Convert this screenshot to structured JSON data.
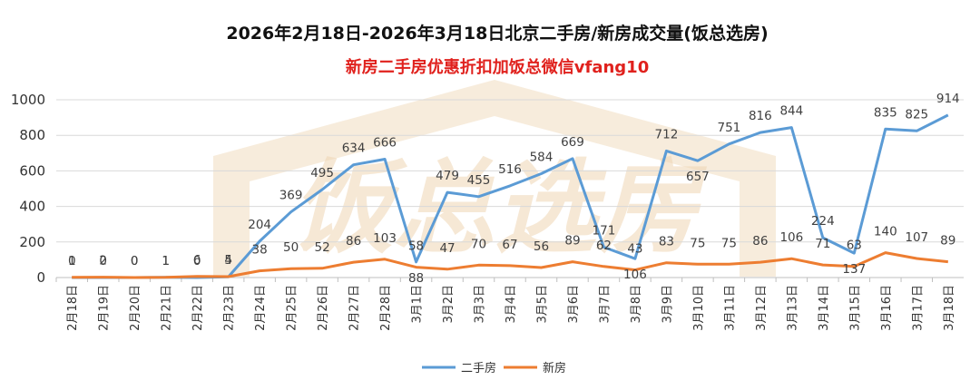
{
  "colors": {
    "second_hand": "#5b9bd5",
    "new_home": "#ed7d31",
    "subtitle": "#e0211d",
    "watermark": "#f1dcc0"
  },
  "watermark": "饭总选房",
  "chart_data": {
    "type": "line",
    "title": "2026年2月18日-2026年3月18日北京二手房/新房成交量(饭总选房)",
    "subtitle": "新房二手房优惠折扣加饭总微信vfang10",
    "categories": [
      "2月18日",
      "2月19日",
      "2月20日",
      "2月21日",
      "2月22日",
      "2月23日",
      "2月24日",
      "2月25日",
      "2月26日",
      "2月27日",
      "2月28日",
      "3月1日",
      "3月2日",
      "3月3日",
      "3月4日",
      "3月5日",
      "3月6日",
      "3月7日",
      "3月8日",
      "3月9日",
      "3月10日",
      "3月11日",
      "3月12日",
      "3月13日",
      "3月14日",
      "3月15日",
      "3月16日",
      "3月17日",
      "3月18日"
    ],
    "series": [
      {
        "name": "二手房",
        "values": [
          0,
          0,
          0,
          1,
          0,
          4,
          204,
          369,
          495,
          634,
          666,
          88,
          479,
          455,
          516,
          584,
          669,
          171,
          106,
          712,
          657,
          751,
          816,
          844,
          224,
          137,
          835,
          825,
          914
        ]
      },
      {
        "name": "新房",
        "values": [
          1,
          2,
          0,
          1,
          6,
          5,
          38,
          50,
          52,
          86,
          103,
          58,
          47,
          70,
          67,
          56,
          89,
          62,
          43,
          83,
          75,
          75,
          86,
          106,
          71,
          63,
          140,
          107,
          89
        ]
      }
    ],
    "ylim": [
      0,
      1000
    ],
    "yticks": [
      0,
      200,
      400,
      600,
      800,
      1000
    ],
    "grid": true,
    "legend": "bottom"
  }
}
